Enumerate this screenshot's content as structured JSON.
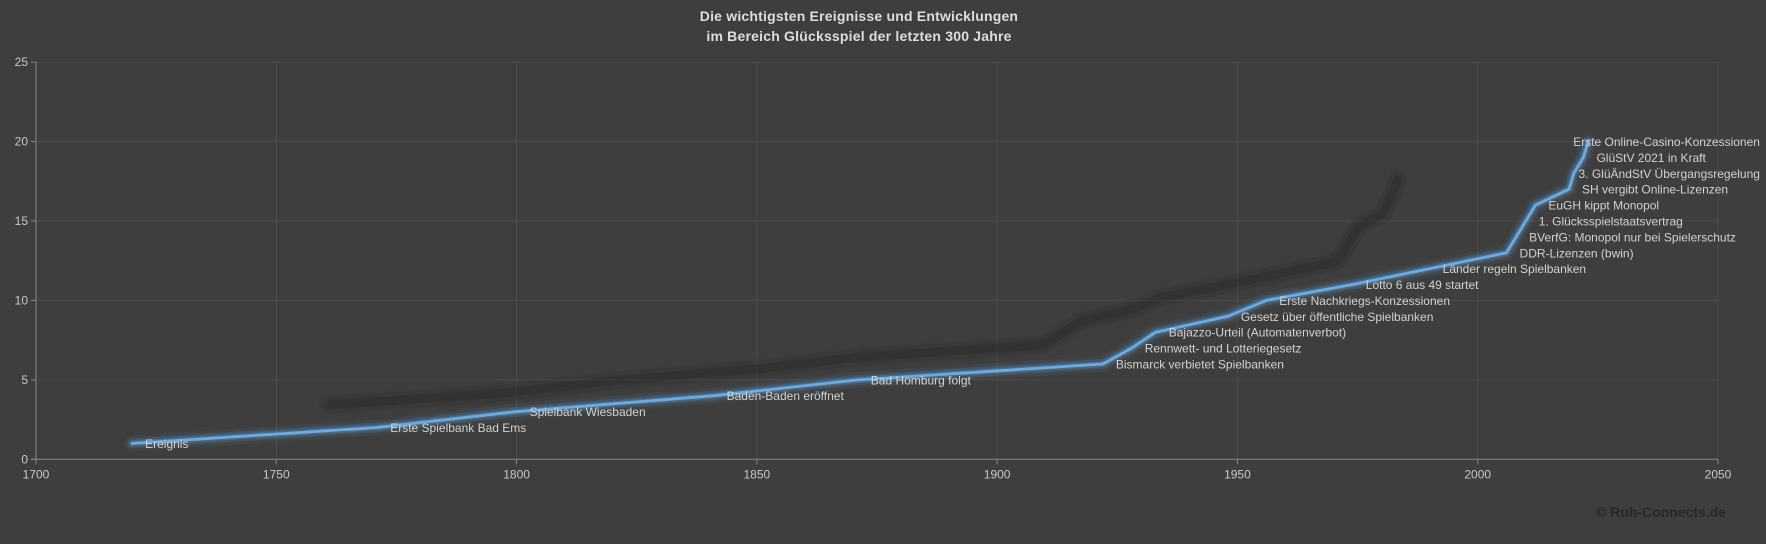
{
  "page": {
    "watermark": "© Ruh-Connects.de"
  },
  "chart_data": {
    "type": "line",
    "title": "Die wichtigsten Ereignisse und Entwicklungen im Bereich Glücksspiel der letzten 300 Jahre",
    "title_lines": [
      "Die wichtigsten Ereignisse und Entwicklungen",
      "im Bereich Glücksspiel der letzten 300 Jahre"
    ],
    "series_name": "Ereignis",
    "points": [
      {
        "year": 1720,
        "value": 1,
        "label": "Ereignis"
      },
      {
        "year": 1771,
        "value": 2,
        "label": "Erste Spielbank Bad Ems"
      },
      {
        "year": 1800,
        "value": 3,
        "label": "Spielbank Wiesbaden"
      },
      {
        "year": 1841,
        "value": 4,
        "label": "Baden-Baden eröffnet"
      },
      {
        "year": 1871,
        "value": 5,
        "label": "Bad Homburg folgt"
      },
      {
        "year": 1922,
        "value": 6,
        "label": "Bismarck verbietet Spielbanken"
      },
      {
        "year": 1928,
        "value": 7,
        "label": "Rennwett- und Lotteriegesetz"
      },
      {
        "year": 1933,
        "value": 8,
        "label": "Bajazzo-Urteil (Automatenverbot)"
      },
      {
        "year": 1948,
        "value": 9,
        "label": "Gesetz über öffentliche Spielbanken"
      },
      {
        "year": 1956,
        "value": 10,
        "label": "Erste Nachkriegs-Konzessionen"
      },
      {
        "year": 1974,
        "value": 11,
        "label": "Lotto 6 aus 49 startet"
      },
      {
        "year": 1990,
        "value": 12,
        "label": "Länder regeln Spielbanken"
      },
      {
        "year": 2006,
        "value": 13,
        "label": "DDR-Lizenzen (bwin)"
      },
      {
        "year": 2008,
        "value": 14,
        "label": "BVerfG: Monopol nur bei Spielerschutz"
      },
      {
        "year": 2010,
        "value": 15,
        "label": "1. Glücksspielstaatsvertrag"
      },
      {
        "year": 2012,
        "value": 16,
        "label": "EuGH kippt Monopol"
      },
      {
        "year": 2019,
        "value": 17,
        "label": "SH vergibt Online-Lizenzen"
      },
      {
        "year": 2020,
        "value": 18,
        "label": "3. GlüÄndStV Übergangsregelung"
      },
      {
        "year": 2022,
        "value": 19,
        "label": "GlüStV 2021 in Kraft"
      },
      {
        "year": 2023,
        "value": 20,
        "label": "Erste Online-Casino-Konzessionen"
      }
    ],
    "xlabel": "",
    "ylabel": "",
    "x_axis": {
      "min": 1700,
      "max": 2050,
      "ticks": [
        1700,
        1750,
        1800,
        1850,
        1900,
        1950,
        2000,
        2050
      ]
    },
    "y_axis": {
      "min": 0,
      "max": 25,
      "ticks": [
        0,
        5,
        10,
        15,
        20,
        25
      ]
    },
    "grid": true,
    "legend": "none",
    "colors": {
      "background": "#3E3E3E",
      "gridline": "#4B4B4B",
      "axis": "#878787",
      "line": "#5B9BD5",
      "line_core": "#6FA9DE",
      "shadow": "#232323",
      "tick_text": "#C8C8C8",
      "label_text": "#D2D2D2",
      "title_text": "#DDDDDD",
      "watermark_text": "#282828"
    }
  }
}
